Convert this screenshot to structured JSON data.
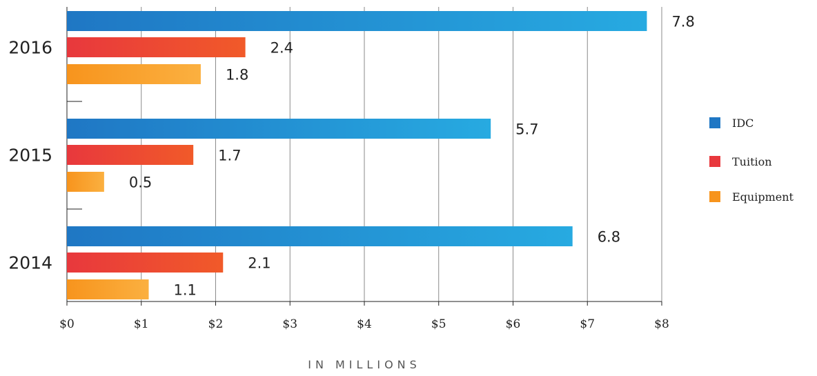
{
  "chart_data": {
    "type": "bar",
    "orientation": "horizontal",
    "categories": [
      "2016",
      "2015",
      "2014"
    ],
    "series": [
      {
        "name": "IDC",
        "values": [
          7.8,
          5.7,
          6.8
        ],
        "color": "#1f77c4",
        "color_end": "#27aae1"
      },
      {
        "name": "Tuition",
        "values": [
          2.4,
          1.7,
          2.1
        ],
        "color": "#e8383d",
        "color_end": "#f15a29"
      },
      {
        "name": "Equipment",
        "values": [
          1.8,
          0.5,
          1.1
        ],
        "color": "#f7941d",
        "color_end": "#fbb040"
      }
    ],
    "value_labels": {
      "IDC": [
        "7.8",
        "5.7",
        "6.8"
      ],
      "Tuition": [
        "2.4",
        "1.7",
        "2.1"
      ],
      "Equipment": [
        "1.8",
        "0.5",
        "1.1"
      ]
    },
    "xticks": [
      "$0",
      "$1",
      "$2",
      "$3",
      "$4",
      "$5",
      "$6",
      "$7",
      "$8"
    ],
    "xlim": [
      0,
      8
    ],
    "xlabel": "IN MILLIONS",
    "ylabel": "",
    "title": "",
    "grid": "vertical",
    "legend_position": "right"
  }
}
